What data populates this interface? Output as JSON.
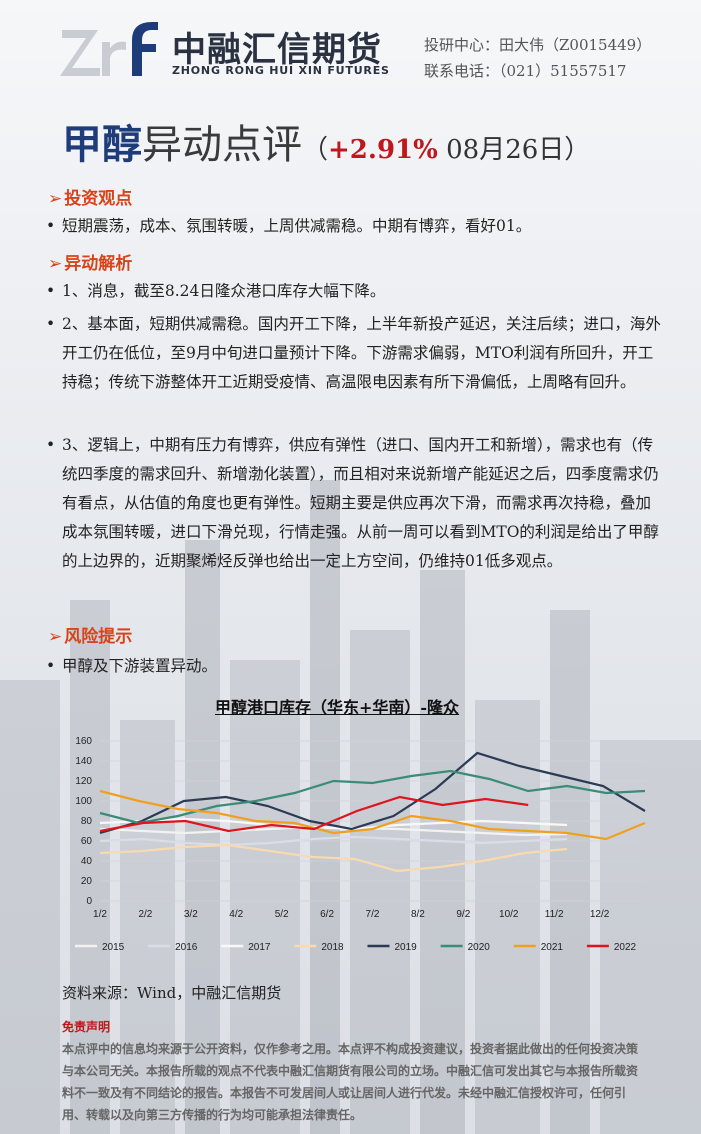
{
  "header": {
    "logo_cn": "中融汇信期货",
    "logo_en": "ZHONG RONG HUI XIN FUTURES",
    "contact_line1": "投研中心：田大伟（Z0015449）",
    "contact_line2": "联系电话：（021）51557517"
  },
  "title": {
    "main_a": "甲醇",
    "main_b": "异动点评",
    "paren_open": "（",
    "change": "+2.91%",
    "date": " 08月26日）"
  },
  "sections": {
    "view_title": "投资观点",
    "view_text": "短期震荡，成本、氛围转暖，上周供减需稳。中期有博弈，看好01。",
    "analysis_title": "异动解析",
    "analysis_1": "1、消息，截至8.24日隆众港口库存大幅下降。",
    "analysis_2": "2、基本面，短期供减需稳。国内开工下降，上半年新投产延迟，关注后续；进口，海外开工仍在低位，至9月中旬进口量预计下降。下游需求偏弱，MTO利润有所回升，开工持稳；传统下游整体开工近期受疫情、高温限电因素有所下滑偏低，上周略有回升。",
    "analysis_3": "3、逻辑上，中期有压力有博弈，供应有弹性（进口、国内开工和新增），需求也有（传统四季度的需求回升、新增渤化装置），而且相对来说新增产能延迟之后，四季度需求仍有看点，从估值的角度也更有弹性。短期主要是供应再次下滑，而需求再次持稳，叠加成本氛围转暖，进口下滑兑现，行情走强。从前一周可以看到MTO的利润是给出了甲醇的上边界的，近期聚烯烃反弹也给出一定上方空间，仍维持01低多观点。",
    "risk_title": "风险提示",
    "risk_text": "甲醇及下游装置异动。",
    "bullet": "•",
    "arrow": "➢"
  },
  "chart_data": {
    "type": "line",
    "title": "甲醇港口库存（华东+华南）-隆众",
    "xlabel": "",
    "ylabel": "",
    "x_ticks": [
      "1/2",
      "2/2",
      "3/2",
      "4/2",
      "5/2",
      "6/2",
      "7/2",
      "8/2",
      "9/2",
      "10/2",
      "11/2",
      "12/2"
    ],
    "ylim": [
      0,
      160
    ],
    "y_ticks": [
      0,
      20,
      40,
      60,
      80,
      100,
      120,
      140,
      160
    ],
    "grid": true,
    "legend_position": "bottom",
    "series": [
      {
        "name": "2015",
        "color": "#f2f2f2",
        "values": [
          72,
          70,
          68,
          70,
          72,
          74,
          73,
          72,
          70,
          68,
          66,
          67
        ]
      },
      {
        "name": "2016",
        "color": "#d9dde8",
        "values": [
          60,
          62,
          58,
          56,
          58,
          62,
          64,
          62,
          60,
          58,
          60,
          62
        ]
      },
      {
        "name": "2017",
        "color": "#f8f8f8",
        "values": [
          78,
          80,
          82,
          80,
          76,
          74,
          72,
          76,
          78,
          80,
          78,
          76
        ]
      },
      {
        "name": "2018",
        "color": "#f9dab0",
        "values": [
          48,
          50,
          54,
          56,
          50,
          44,
          42,
          30,
          34,
          40,
          48,
          52
        ]
      },
      {
        "name": "2019",
        "color": "#2b3a55",
        "values": [
          68,
          80,
          100,
          104,
          95,
          80,
          72,
          85,
          112,
          148,
          135,
          125,
          115,
          90
        ]
      },
      {
        "name": "2020",
        "color": "#3a8c78",
        "values": [
          88,
          78,
          85,
          95,
          100,
          108,
          120,
          118,
          125,
          130,
          122,
          110,
          115,
          108,
          110
        ]
      },
      {
        "name": "2021",
        "color": "#f0a020",
        "values": [
          110,
          100,
          92,
          88,
          80,
          78,
          68,
          72,
          85,
          80,
          72,
          70,
          68,
          62,
          78
        ]
      },
      {
        "name": "2022",
        "color": "#e0141e",
        "values": [
          70,
          78,
          80,
          70,
          76,
          72,
          90,
          104,
          96,
          102,
          96
        ]
      }
    ]
  },
  "source": "资料来源：Wind，中融汇信期货",
  "disclaimer": {
    "title": "免责声明",
    "body": "本点评中的信息均来源于公开资料，仅作参考之用。本点评不构成投资建议，投资者据此做出的任何投资决策与本公司无关。本报告所载的观点不代表中融汇信期货有限公司的立场。中融汇信可发出其它与本报告所载资料不一致及有不同结论的报告。本报告不可发居间人或让居间人进行代发。未经中融汇信授权许可，任何引用、转载以及向第三方传播的行为均可能承担法律责任。"
  }
}
